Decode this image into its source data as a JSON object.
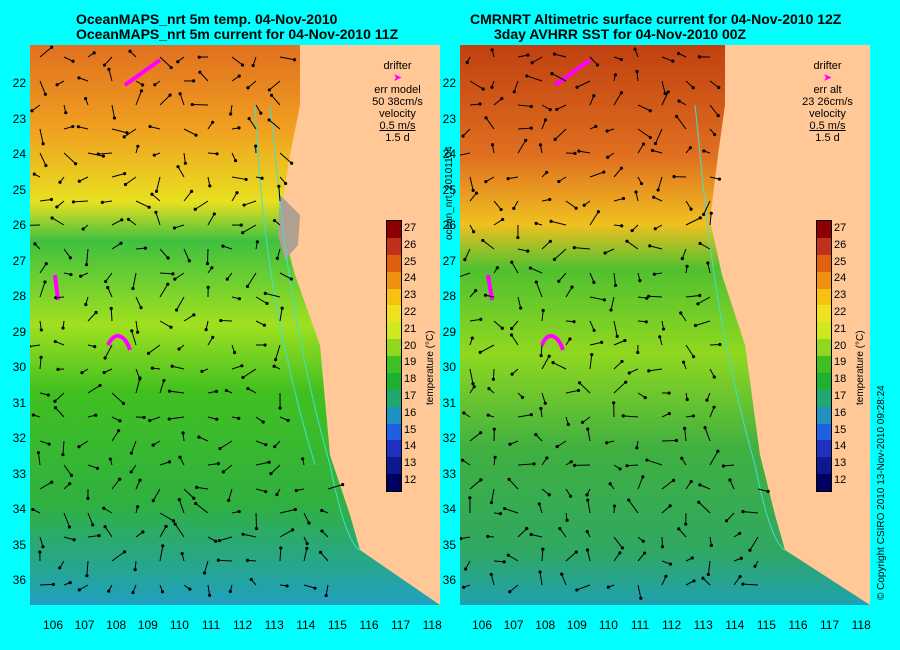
{
  "left_panel": {
    "title_line1": "OceanMAPS_nrt 5m temp. 04-Nov-2010",
    "title_line2": "OceanMAPS_nrt 5m current for 04-Nov-2010 11Z",
    "legend": {
      "drifter": "drifter",
      "err_label": "err model",
      "err_value": "50 38cm/s",
      "velocity": "velocity",
      "speed": "0.5 m/s",
      "days": "1.5 d"
    }
  },
  "right_panel": {
    "title_line1": "CMRNRT Altimetric surface current for 04-Nov-2010 12Z",
    "title_line2": "3day AVHRR SST for 04-Nov-2010 00Z",
    "legend": {
      "drifter": "drifter",
      "err_label": "err alt",
      "err_value": "23 26cm/s",
      "velocity": "velocity",
      "speed": "0.5 m/s",
      "days": "1.5 d"
    }
  },
  "y_ticks": [
    "22",
    "23",
    "24",
    "25",
    "26",
    "27",
    "28",
    "29",
    "30",
    "31",
    "32",
    "33",
    "34",
    "35",
    "36"
  ],
  "x_ticks": [
    "106",
    "107",
    "108",
    "109",
    "110",
    "111",
    "112",
    "113",
    "114",
    "115",
    "116",
    "117",
    "118"
  ],
  "colorbar": {
    "ticks": [
      "27",
      "26",
      "25",
      "24",
      "23",
      "22",
      "21",
      "20",
      "19",
      "18",
      "17",
      "16",
      "15",
      "14",
      "13",
      "12"
    ],
    "label": "temperature (°C)",
    "colors": [
      "#8b0000",
      "#c0301a",
      "#e06010",
      "#f09010",
      "#f8c010",
      "#f0e020",
      "#d0e820",
      "#90d820",
      "#40c020",
      "#20b030",
      "#20a870",
      "#2090c0",
      "#2060e0",
      "#2030c0",
      "#101890",
      "#000060"
    ]
  },
  "side_text": {
    "left": "ocean_nrt_20101104",
    "right": "© Copyright CSIRO 2010   13-Nov-2010 09:28:24"
  },
  "colors": {
    "background": "#00ffff",
    "land": "#ffc896",
    "drifter": "#ff00ff",
    "bathymetry": "#40e0d0"
  }
}
